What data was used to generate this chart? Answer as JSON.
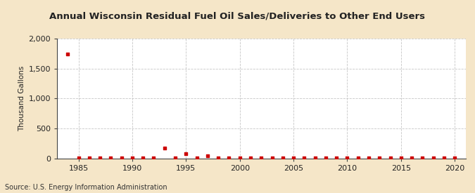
{
  "title": "Annual Wisconsin Residual Fuel Oil Sales/Deliveries to Other End Users",
  "ylabel": "Thousand Gallons",
  "source": "Source: U.S. Energy Information Administration",
  "background_color": "#f5e6c8",
  "plot_background_color": "#ffffff",
  "grid_color": "#c0c0c0",
  "marker_color": "#cc0000",
  "xlim": [
    1983,
    2021
  ],
  "ylim": [
    0,
    2000
  ],
  "yticks": [
    0,
    500,
    1000,
    1500,
    2000
  ],
  "xticks": [
    1985,
    1990,
    1995,
    2000,
    2005,
    2010,
    2015,
    2020
  ],
  "data": {
    "1984": 1740,
    "1985": 4,
    "1986": 2,
    "1987": 2,
    "1988": 2,
    "1989": 2,
    "1990": 2,
    "1991": 2,
    "1992": 2,
    "1993": 170,
    "1994": 4,
    "1995": 80,
    "1996": 4,
    "1997": 45,
    "1998": 4,
    "1999": 3,
    "2000": 3,
    "2001": 3,
    "2002": 3,
    "2003": 3,
    "2004": 3,
    "2005": 4,
    "2006": 3,
    "2007": 3,
    "2008": 3,
    "2009": 3,
    "2010": 3,
    "2011": 3,
    "2012": 3,
    "2013": 3,
    "2014": 3,
    "2015": 3,
    "2016": 3,
    "2017": 3,
    "2018": 3,
    "2019": 3,
    "2020": 3
  },
  "title_fontsize": 9.5,
  "ylabel_fontsize": 7.5,
  "tick_fontsize": 8,
  "source_fontsize": 7
}
